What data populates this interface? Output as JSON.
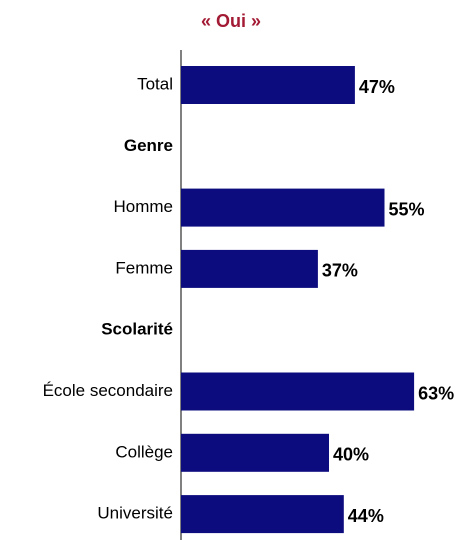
{
  "chart_data": {
    "type": "bar",
    "orientation": "horizontal",
    "title": "« Oui »",
    "categories": [
      "Total",
      "Genre",
      "Homme",
      "Femme",
      "Scolarité",
      "École secondaire",
      "Collège",
      "Université"
    ],
    "values": [
      47,
      null,
      55,
      37,
      null,
      63,
      40,
      44
    ],
    "value_labels": [
      "47%",
      null,
      "55%",
      "37%",
      null,
      "63%",
      "40%",
      "44%"
    ],
    "color": "#0c0c7e"
  }
}
